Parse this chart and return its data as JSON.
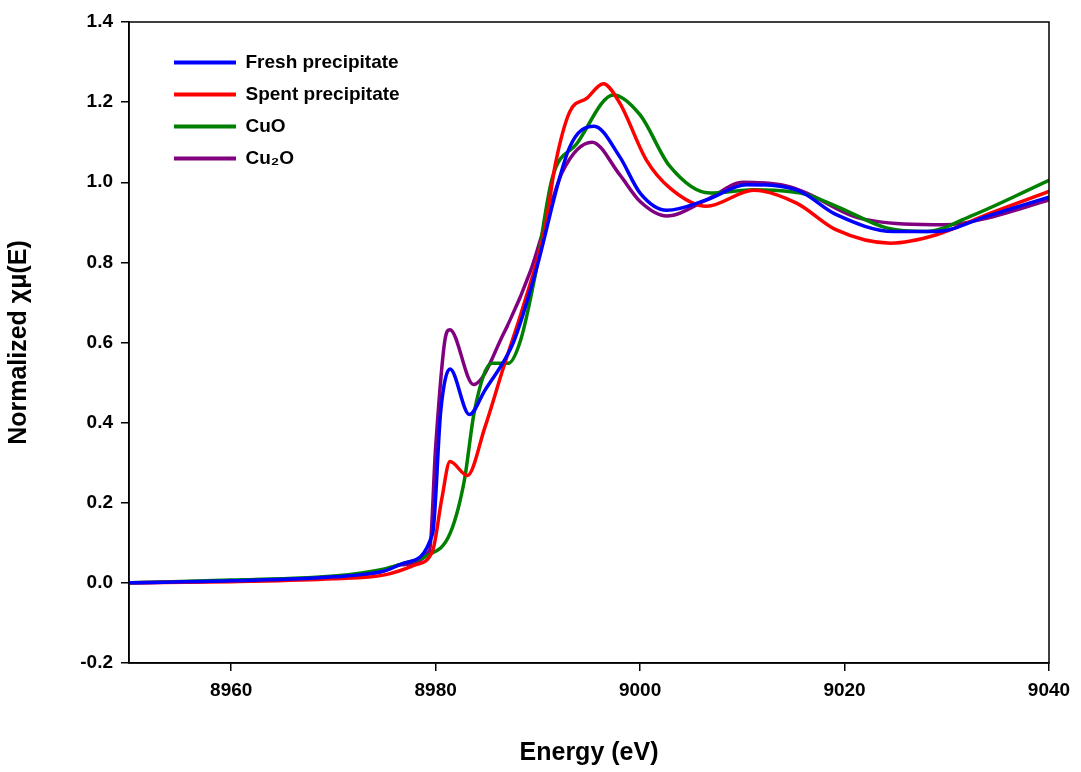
{
  "chart_data": {
    "type": "line",
    "xlabel": "Energy (eV)",
    "ylabel": "Normalized χμ(E)",
    "xlim": [
      8950,
      9040
    ],
    "xticks": [
      8960,
      8980,
      9000,
      9020,
      9040
    ],
    "ylim": [
      -0.2,
      1.4
    ],
    "yticks": [
      {
        "value": -0.2,
        "label": "-0.2"
      },
      {
        "value": 0,
        "label": "0.0"
      },
      {
        "value": 0.2,
        "label": "0.2"
      },
      {
        "value": 0.4,
        "label": "0.4"
      },
      {
        "value": 0.6,
        "label": "0.6"
      },
      {
        "value": 0.8,
        "label": "0.8"
      },
      {
        "value": 1,
        "label": "1.0"
      },
      {
        "value": 1.2,
        "label": "1.2"
      },
      {
        "value": 1.4,
        "label": "1.4"
      }
    ],
    "grid": false,
    "legend": "top left",
    "marker": "none",
    "line_style": "solid",
    "series": [
      {
        "name": "Fresh precipitate",
        "color": "#0000ff",
        "x": [
          8950,
          8960,
          8970,
          8975,
          8977,
          8979.7,
          8980.5,
          8981.4,
          8983.3,
          8984.8,
          8987.6,
          8989.6,
          8993.1,
          8995.5,
          8998,
          9000,
          9002.6,
          9006.5,
          9010.4,
          9015.3,
          9019.2,
          9024.8,
          9029,
          9033.9,
          9040
        ],
        "values": [
          0.0,
          0.005,
          0.015,
          0.03,
          0.05,
          0.123,
          0.43,
          0.534,
          0.42,
          0.48,
          0.6,
          0.76,
          1.087,
          1.14,
          1.064,
          0.973,
          0.93,
          0.956,
          0.994,
          0.981,
          0.919,
          0.877,
          0.877,
          0.915,
          0.963
        ]
      },
      {
        "name": "Spent precipitate",
        "color": "#ff0000",
        "x": [
          8950,
          8960,
          8970,
          8975,
          8978,
          8979.7,
          8980.6,
          8981.4,
          8983.1,
          8984.8,
          8986.6,
          8988.6,
          8990.7,
          8991.7,
          8993.1,
          8994.8,
          8996.4,
          8998,
          9000.6,
          9002.9,
          9006.5,
          9011.1,
          9015.3,
          9019.2,
          9024.5,
          9029,
          9033.9,
          9040
        ],
        "values": [
          0.0,
          0.003,
          0.01,
          0.02,
          0.045,
          0.08,
          0.21,
          0.303,
          0.268,
          0.387,
          0.535,
          0.693,
          0.886,
          1.044,
          1.175,
          1.21,
          1.246,
          1.198,
          1.056,
          0.986,
          0.94,
          0.98,
          0.948,
          0.881,
          0.848,
          0.869,
          0.919,
          0.977
        ]
      },
      {
        "name": "CuO",
        "color": "#008000",
        "x": [
          8950,
          8960,
          8970,
          8975,
          8977,
          8979,
          8981.4,
          8982.8,
          8983.8,
          8985.5,
          8987.1,
          8988.3,
          8989.7,
          8991.4,
          8993.8,
          8997.4,
          9000,
          9002.9,
          9006.8,
          9011.1,
          9015.7,
          9019.2,
          9024.1,
          9028,
          9032.3,
          9040
        ],
        "values": [
          0.0,
          0.007,
          0.017,
          0.035,
          0.05,
          0.066,
          0.123,
          0.255,
          0.43,
          0.548,
          0.548,
          0.605,
          0.763,
          1.01,
          1.096,
          1.218,
          1.168,
          1.04,
          0.973,
          0.981,
          0.973,
          0.94,
          0.886,
          0.877,
          0.915,
          1.005
        ]
      },
      {
        "name": "Cu₂O",
        "color": "#800080",
        "x": [
          8950,
          8960,
          8970,
          8974.6,
          8976.6,
          8979.4,
          8980,
          8980.9,
          8981.4,
          8983.7,
          8986.6,
          8989.3,
          8990.7,
          8992.4,
          8995.3,
          8998,
          9000,
          9002.6,
          9006.5,
          9010.1,
          9014.3,
          9016.3,
          9020.9,
          9025.8,
          9030,
          9033.9,
          9040
        ],
        "values": [
          0.0,
          0.005,
          0.015,
          0.027,
          0.045,
          0.08,
          0.34,
          0.605,
          0.632,
          0.495,
          0.62,
          0.78,
          0.894,
          1.026,
          1.1,
          1.019,
          0.952,
          0.916,
          0.956,
          1.0,
          0.991,
          0.973,
          0.915,
          0.896,
          0.894,
          0.91,
          0.956
        ]
      }
    ]
  }
}
